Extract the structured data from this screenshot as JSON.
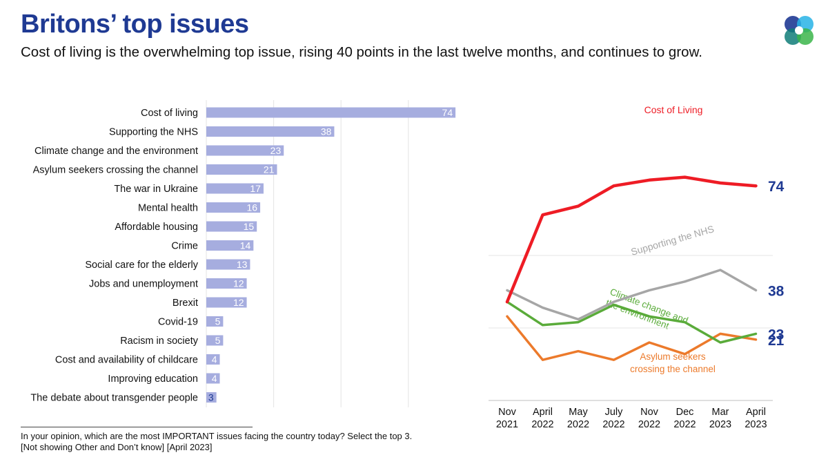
{
  "header": {
    "title": "Britons’ top issues",
    "subtitle": "Cost of living is the overwhelming top issue, rising 40 points in the last twelve months, and continues to grow."
  },
  "logo": {
    "icon": "four-circle-logo-icon",
    "colors": [
      "#1f3a93",
      "#27b3e6",
      "#3bb54a",
      "#0f7d78"
    ]
  },
  "footnote": {
    "line1": "In your opinion, which are the most IMPORTANT issues facing the country today? Select the top 3.",
    "line2": "[Not showing Other and Don’t know] [April 2023]"
  },
  "chart_data": [
    {
      "type": "bar",
      "orientation": "horizontal",
      "categories": [
        "Cost of living",
        "Supporting the NHS",
        "Climate change and the environment",
        "Asylum seekers crossing the channel",
        "The war in Ukraine",
        "Mental health",
        "Affordable housing",
        "Crime",
        "Social care for the elderly",
        "Jobs and unemployment",
        "Brexit",
        "Covid-19",
        "Racism in society",
        "Cost and availability of childcare",
        "Improving education",
        "The debate about transgender people"
      ],
      "values": [
        74,
        38,
        23,
        21,
        17,
        16,
        15,
        14,
        13,
        12,
        12,
        5,
        5,
        4,
        4,
        3
      ],
      "xlim": [
        0,
        80
      ],
      "grid": true,
      "bar_color": "#a6addf",
      "label_color": "#ffffff"
    },
    {
      "type": "line",
      "x": [
        "Nov 2021",
        "April 2022",
        "May 2022",
        "July 2022",
        "Nov 2022",
        "Dec 2022",
        "Mar 2023",
        "April 2023"
      ],
      "ylim": [
        0,
        80
      ],
      "series": [
        {
          "name": "Cost of Living",
          "color": "#ee1c25",
          "values": [
            34,
            64,
            67,
            74,
            76,
            77,
            75,
            74
          ],
          "end_label": "74"
        },
        {
          "name": "Supporting the NHS",
          "color": "#a6a6a6",
          "values": [
            38,
            32,
            28,
            34,
            38,
            41,
            45,
            38
          ],
          "end_label": "38"
        },
        {
          "name": "Climate change and the environment",
          "color": "#5aab3a",
          "values": [
            34,
            26,
            27,
            33,
            29,
            27,
            20,
            23
          ],
          "end_label": "23"
        },
        {
          "name": "Asylum seekers crossing the channel",
          "color": "#ec7a2b",
          "values": [
            29,
            14,
            17,
            14,
            20,
            16,
            23,
            21
          ],
          "end_label": "21"
        }
      ],
      "series_labels": {
        "cost": "Cost of Living",
        "nhs": "Supporting the NHS",
        "climate_1": "Climate change and",
        "climate_2": "the environment",
        "asylum_1": "Asylum seekers",
        "asylum_2": "crossing the channel"
      },
      "end_label_color": "#1f3a93",
      "grid": true
    }
  ]
}
